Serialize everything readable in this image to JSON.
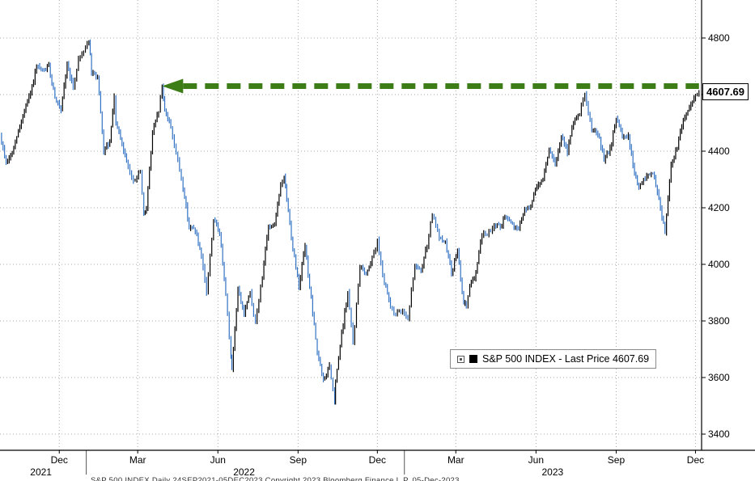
{
  "chart_data": {
    "type": "bar",
    "style": "ohlc-price-bars",
    "title": "S&P 500 INDEX",
    "legend": {
      "label": "S&P 500 INDEX - Last Price 4607.69"
    },
    "last_price": 4607.69,
    "last_price_label": "4607.69",
    "grid": "dotted",
    "colors": {
      "bar_up": "#000000",
      "bar_down": "#3272c4",
      "arrow_green": "#3c7d17",
      "grid": "#ababab",
      "axis": "#000000"
    },
    "y_axis": {
      "side": "right",
      "ticks": [
        4800,
        4600,
        4400,
        4200,
        4000,
        3800,
        3600,
        3400
      ],
      "ylim": [
        3343,
        4934
      ]
    },
    "x_axis": {
      "range": [
        "2021-09-24",
        "2023-12-08"
      ],
      "months": [
        {
          "label": "Dec",
          "date": "2021-12-01"
        },
        {
          "label": "Mar",
          "date": "2022-03-01"
        },
        {
          "label": "Jun",
          "date": "2022-06-01"
        },
        {
          "label": "Sep",
          "date": "2022-09-01"
        },
        {
          "label": "Dec",
          "date": "2022-12-01"
        },
        {
          "label": "Mar",
          "date": "2023-03-01"
        },
        {
          "label": "Jun",
          "date": "2023-06-01"
        },
        {
          "label": "Sep",
          "date": "2023-09-01"
        },
        {
          "label": "Dec",
          "date": "2023-12-01"
        }
      ],
      "years": [
        {
          "label": "2021",
          "date": "2021-11-10"
        },
        {
          "label": "2022",
          "date": "2022-07-01"
        },
        {
          "label": "2023",
          "date": "2023-06-20"
        }
      ],
      "year_separators": [
        "2022-01-01",
        "2023-01-01"
      ]
    },
    "series": [
      {
        "name": "S&P 500 INDEX",
        "points": [
          [
            "2021-09-24",
            4455
          ],
          [
            "2021-10-01",
            4357
          ],
          [
            "2021-10-08",
            4391
          ],
          [
            "2021-10-15",
            4471
          ],
          [
            "2021-10-22",
            4545
          ],
          [
            "2021-10-29",
            4605
          ],
          [
            "2021-11-05",
            4698
          ],
          [
            "2021-11-12",
            4683
          ],
          [
            "2021-11-19",
            4698
          ],
          [
            "2021-11-26",
            4595
          ],
          [
            "2021-12-03",
            4538
          ],
          [
            "2021-12-10",
            4712
          ],
          [
            "2021-12-17",
            4621
          ],
          [
            "2021-12-23",
            4726
          ],
          [
            "2021-12-31",
            4766
          ],
          [
            "2022-01-04",
            4794
          ],
          [
            "2022-01-07",
            4677
          ],
          [
            "2022-01-14",
            4663
          ],
          [
            "2022-01-21",
            4398
          ],
          [
            "2022-01-28",
            4432
          ],
          [
            "2022-02-02",
            4589
          ],
          [
            "2022-02-04",
            4501
          ],
          [
            "2022-02-11",
            4419
          ],
          [
            "2022-02-18",
            4349
          ],
          [
            "2022-02-24",
            4288
          ],
          [
            "2022-03-04",
            4329
          ],
          [
            "2022-03-08",
            4170
          ],
          [
            "2022-03-11",
            4204
          ],
          [
            "2022-03-18",
            4463
          ],
          [
            "2022-03-25",
            4543
          ],
          [
            "2022-03-29",
            4631
          ],
          [
            "2022-04-01",
            4546
          ],
          [
            "2022-04-08",
            4488
          ],
          [
            "2022-04-14",
            4393
          ],
          [
            "2022-04-22",
            4272
          ],
          [
            "2022-04-29",
            4132
          ],
          [
            "2022-05-06",
            4123
          ],
          [
            "2022-05-13",
            4024
          ],
          [
            "2022-05-19",
            3901
          ],
          [
            "2022-05-27",
            4158
          ],
          [
            "2022-06-03",
            4109
          ],
          [
            "2022-06-10",
            3901
          ],
          [
            "2022-06-16",
            3667
          ],
          [
            "2022-06-17",
            3636
          ],
          [
            "2022-06-24",
            3912
          ],
          [
            "2022-07-01",
            3825
          ],
          [
            "2022-07-08",
            3899
          ],
          [
            "2022-07-14",
            3790
          ],
          [
            "2022-07-22",
            3962
          ],
          [
            "2022-07-29",
            4130
          ],
          [
            "2022-08-05",
            4145
          ],
          [
            "2022-08-12",
            4280
          ],
          [
            "2022-08-16",
            4305
          ],
          [
            "2022-08-19",
            4228
          ],
          [
            "2022-08-26",
            4058
          ],
          [
            "2022-09-02",
            3924
          ],
          [
            "2022-09-09",
            4067
          ],
          [
            "2022-09-16",
            3873
          ],
          [
            "2022-09-23",
            3693
          ],
          [
            "2022-09-30",
            3586
          ],
          [
            "2022-10-07",
            3640
          ],
          [
            "2022-10-13",
            3510
          ],
          [
            "2022-10-14",
            3583
          ],
          [
            "2022-10-21",
            3753
          ],
          [
            "2022-10-28",
            3901
          ],
          [
            "2022-11-03",
            3720
          ],
          [
            "2022-11-11",
            3993
          ],
          [
            "2022-11-18",
            3965
          ],
          [
            "2022-11-25",
            4026
          ],
          [
            "2022-12-01",
            4080
          ],
          [
            "2022-12-09",
            3934
          ],
          [
            "2022-12-16",
            3852
          ],
          [
            "2022-12-22",
            3822
          ],
          [
            "2022-12-30",
            3840
          ],
          [
            "2023-01-05",
            3808
          ],
          [
            "2023-01-13",
            3999
          ],
          [
            "2023-01-20",
            3973
          ],
          [
            "2023-01-27",
            4071
          ],
          [
            "2023-02-02",
            4180
          ],
          [
            "2023-02-10",
            4090
          ],
          [
            "2023-02-17",
            4079
          ],
          [
            "2023-02-24",
            3970
          ],
          [
            "2023-03-03",
            4046
          ],
          [
            "2023-03-10",
            3862
          ],
          [
            "2023-03-13",
            3856
          ],
          [
            "2023-03-17",
            3917
          ],
          [
            "2023-03-24",
            3971
          ],
          [
            "2023-03-31",
            4109
          ],
          [
            "2023-04-06",
            4105
          ],
          [
            "2023-04-14",
            4138
          ],
          [
            "2023-04-21",
            4134
          ],
          [
            "2023-04-28",
            4169
          ],
          [
            "2023-05-05",
            4136
          ],
          [
            "2023-05-12",
            4124
          ],
          [
            "2023-05-19",
            4192
          ],
          [
            "2023-05-26",
            4205
          ],
          [
            "2023-06-02",
            4282
          ],
          [
            "2023-06-09",
            4299
          ],
          [
            "2023-06-16",
            4410
          ],
          [
            "2023-06-23",
            4348
          ],
          [
            "2023-06-30",
            4450
          ],
          [
            "2023-07-07",
            4399
          ],
          [
            "2023-07-14",
            4505
          ],
          [
            "2023-07-21",
            4536
          ],
          [
            "2023-07-27",
            4607
          ],
          [
            "2023-08-04",
            4478
          ],
          [
            "2023-08-11",
            4464
          ],
          [
            "2023-08-18",
            4370
          ],
          [
            "2023-08-25",
            4406
          ],
          [
            "2023-09-01",
            4516
          ],
          [
            "2023-09-08",
            4457
          ],
          [
            "2023-09-15",
            4450
          ],
          [
            "2023-09-22",
            4320
          ],
          [
            "2023-09-27",
            4274
          ],
          [
            "2023-10-06",
            4309
          ],
          [
            "2023-10-13",
            4328
          ],
          [
            "2023-10-20",
            4224
          ],
          [
            "2023-10-27",
            4117
          ],
          [
            "2023-11-03",
            4358
          ],
          [
            "2023-11-10",
            4415
          ],
          [
            "2023-11-17",
            4514
          ],
          [
            "2023-11-24",
            4559
          ],
          [
            "2023-12-01",
            4594
          ],
          [
            "2023-12-05",
            4607.69
          ]
        ]
      }
    ],
    "annotations": [
      {
        "type": "dashed-arrow",
        "direction": "left",
        "value": 4630,
        "x_start": "2022-03-29",
        "x_end": "2023-12-05",
        "color": "#3c7d17"
      }
    ]
  },
  "footer": {
    "cropped_text": "S&P 500 INDEX  Daily 24SEP2021-05DEC2023  Copyright 2023 Bloomberg Finance L.P.  05-Dec-2023"
  }
}
